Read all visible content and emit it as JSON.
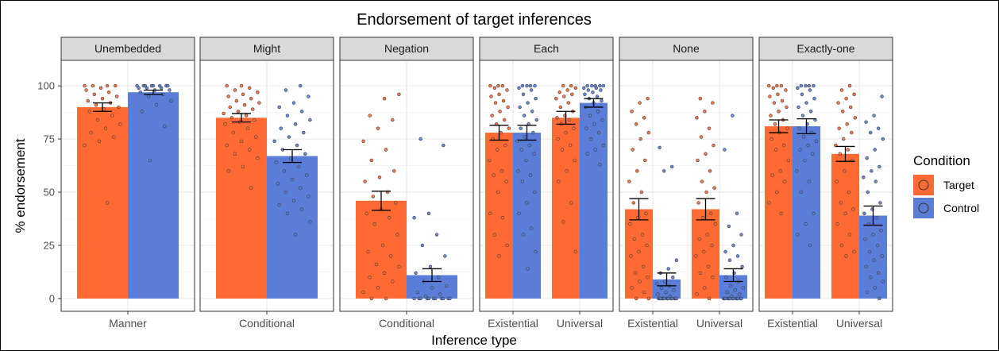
{
  "colors": {
    "target": "#FF6A33",
    "control": "#5A7DD8"
  },
  "chart_data": {
    "type": "bar",
    "title": "Endorsement of target inferences",
    "xlabel": "Inference type",
    "ylabel": "% endorsement",
    "ylim": [
      -6,
      112
    ],
    "yticks": [
      0,
      25,
      50,
      75,
      100
    ],
    "grid": true,
    "legend": {
      "title": "Condition",
      "position": "right",
      "entries": [
        {
          "name": "Target",
          "color_key": "target"
        },
        {
          "name": "Control",
          "color_key": "control"
        }
      ]
    },
    "panels": [
      {
        "strip": "Unembedded",
        "categories": [
          "Manner"
        ],
        "series": [
          {
            "name": "Target",
            "values": [
              90
            ],
            "err": [
              2
            ],
            "points": [
              [
                100,
                100,
                100,
                100,
                99,
                98,
                97,
                96,
                95,
                94,
                93,
                92,
                91,
                90,
                89,
                88,
                86,
                84,
                82,
                80,
                78,
                76,
                74,
                72,
                45
              ]
            ]
          },
          {
            "name": "Control",
            "values": [
              97
            ],
            "err": [
              1
            ],
            "points": [
              [
                100,
                100,
                100,
                100,
                100,
                100,
                100,
                100,
                99,
                99,
                99,
                98,
                98,
                97,
                96,
                95,
                93,
                91,
                88,
                81,
                65
              ]
            ]
          }
        ]
      },
      {
        "strip": "Might",
        "categories": [
          "Conditional"
        ],
        "series": [
          {
            "name": "Target",
            "values": [
              85
            ],
            "err": [
              2
            ],
            "points": [
              [
                100,
                100,
                99,
                98,
                97,
                96,
                95,
                94,
                93,
                92,
                91,
                90,
                89,
                88,
                87,
                86,
                85,
                84,
                83,
                82,
                80,
                78,
                76,
                74,
                72,
                70,
                68,
                66,
                62,
                60,
                52
              ]
            ]
          },
          {
            "name": "Control",
            "values": [
              67
            ],
            "err": [
              3
            ],
            "points": [
              [
                100,
                98,
                95,
                92,
                90,
                88,
                86,
                84,
                82,
                80,
                78,
                76,
                74,
                72,
                70,
                68,
                66,
                64,
                62,
                60,
                58,
                56,
                54,
                52,
                50,
                48,
                46,
                44,
                42,
                40,
                36,
                30
              ]
            ]
          }
        ]
      },
      {
        "strip": "Negation",
        "categories": [
          "Conditional"
        ],
        "series": [
          {
            "name": "Target",
            "values": [
              46
            ],
            "err": [
              4.5
            ],
            "points": [
              [
                96,
                94,
                86,
                84,
                80,
                74,
                70,
                65,
                60,
                57,
                55,
                50,
                48,
                45,
                42,
                40,
                38,
                35,
                30,
                25,
                22,
                20,
                16,
                15,
                12,
                10,
                8,
                5,
                3,
                0,
                0
              ]
            ]
          },
          {
            "name": "Control",
            "values": [
              11
            ],
            "err": [
              3
            ],
            "points": [
              [
                75,
                72,
                40,
                38,
                30,
                25,
                20,
                15,
                12,
                10,
                8,
                6,
                5,
                3,
                2,
                1,
                0,
                0,
                0,
                0,
                0,
                0,
                0,
                0,
                0,
                0,
                0
              ]
            ]
          }
        ]
      },
      {
        "strip": "Each",
        "categories": [
          "Existential",
          "Universal"
        ],
        "series": [
          {
            "name": "Target",
            "values": [
              78,
              85
            ],
            "err": [
              3.5,
              3
            ],
            "points": [
              [
                100,
                100,
                100,
                99,
                98,
                96,
                95,
                93,
                92,
                90,
                88,
                86,
                84,
                82,
                80,
                78,
                75,
                72,
                70,
                65,
                60,
                58,
                55,
                50,
                40,
                38,
                30,
                25,
                20
              ],
              [
                100,
                100,
                99,
                98,
                97,
                96,
                95,
                94,
                92,
                90,
                88,
                86,
                85,
                84,
                82,
                80,
                78,
                75,
                72,
                70,
                65,
                60,
                55,
                45,
                36,
                22
              ]
            ]
          },
          {
            "name": "Control",
            "values": [
              78,
              92
            ],
            "err": [
              3.5,
              2
            ],
            "points": [
              [
                100,
                100,
                100,
                100,
                99,
                98,
                96,
                94,
                92,
                90,
                88,
                86,
                84,
                82,
                80,
                78,
                76,
                74,
                72,
                70,
                68,
                65,
                60,
                58,
                55,
                50,
                45,
                40,
                33,
                30,
                22,
                14
              ],
              [
                100,
                100,
                100,
                100,
                100,
                99,
                99,
                98,
                98,
                97,
                96,
                95,
                94,
                93,
                92,
                90,
                88,
                86,
                84,
                82,
                80,
                78,
                75,
                72,
                70,
                68,
                63
              ]
            ]
          }
        ]
      },
      {
        "strip": "None",
        "categories": [
          "Existential",
          "Universal"
        ],
        "series": [
          {
            "name": "Target",
            "values": [
              42,
              42
            ],
            "err": [
              5,
              5
            ],
            "points": [
              [
                94,
                92,
                88,
                85,
                82,
                78,
                75,
                70,
                65,
                60,
                55,
                50,
                45,
                40,
                38,
                35,
                30,
                28,
                25,
                22,
                20,
                15,
                12,
                10,
                8,
                5,
                3,
                0,
                0
              ],
              [
                94,
                92,
                88,
                85,
                80,
                76,
                72,
                68,
                65,
                60,
                55,
                52,
                50,
                45,
                40,
                38,
                35,
                30,
                28,
                25,
                22,
                20,
                15,
                12,
                10,
                5,
                2,
                0
              ]
            ]
          },
          {
            "name": "Control",
            "values": [
              9,
              11
            ],
            "err": [
              3,
              3
            ],
            "points": [
              [
                71,
                62,
                60,
                18,
                14,
                12,
                10,
                8,
                7,
                6,
                5,
                4,
                3,
                2,
                1,
                0,
                0,
                0,
                0,
                0,
                0,
                0,
                0,
                0,
                0,
                0,
                0,
                0,
                0
              ],
              [
                86,
                70,
                40,
                34,
                30,
                25,
                22,
                20,
                18,
                15,
                12,
                10,
                8,
                6,
                5,
                4,
                3,
                2,
                1,
                0,
                0,
                0,
                0,
                0,
                0,
                0,
                0,
                0,
                0,
                0,
                0,
                0
              ]
            ]
          }
        ]
      },
      {
        "strip": "Exactly-one",
        "categories": [
          "Existential",
          "Universal"
        ],
        "series": [
          {
            "name": "Target",
            "values": [
              81,
              68
            ],
            "err": [
              3,
              3.5
            ],
            "points": [
              [
                100,
                100,
                100,
                99,
                98,
                96,
                95,
                93,
                92,
                90,
                88,
                86,
                84,
                82,
                80,
                78,
                75,
                72,
                70,
                65,
                60,
                58,
                55,
                50,
                45,
                40
              ],
              [
                100,
                98,
                96,
                94,
                92,
                90,
                88,
                85,
                82,
                80,
                78,
                75,
                72,
                70,
                68,
                65,
                60,
                55,
                50,
                45,
                42,
                40,
                35,
                30,
                25,
                22,
                20
              ]
            ]
          },
          {
            "name": "Control",
            "values": [
              81,
              39
            ],
            "err": [
              3.5,
              4.5
            ],
            "points": [
              [
                100,
                100,
                100,
                100,
                99,
                98,
                96,
                94,
                92,
                90,
                88,
                86,
                84,
                82,
                80,
                78,
                76,
                74,
                72,
                70,
                68,
                65,
                60,
                55,
                50,
                40,
                35,
                30,
                25
              ],
              [
                95,
                86,
                83,
                80,
                78,
                75,
                70,
                66,
                62,
                60,
                57,
                55,
                50,
                45,
                42,
                40,
                38,
                35,
                32,
                30,
                28,
                25,
                22,
                20,
                18,
                15,
                12,
                10,
                8,
                5,
                3,
                0
              ]
            ]
          }
        ]
      }
    ]
  }
}
